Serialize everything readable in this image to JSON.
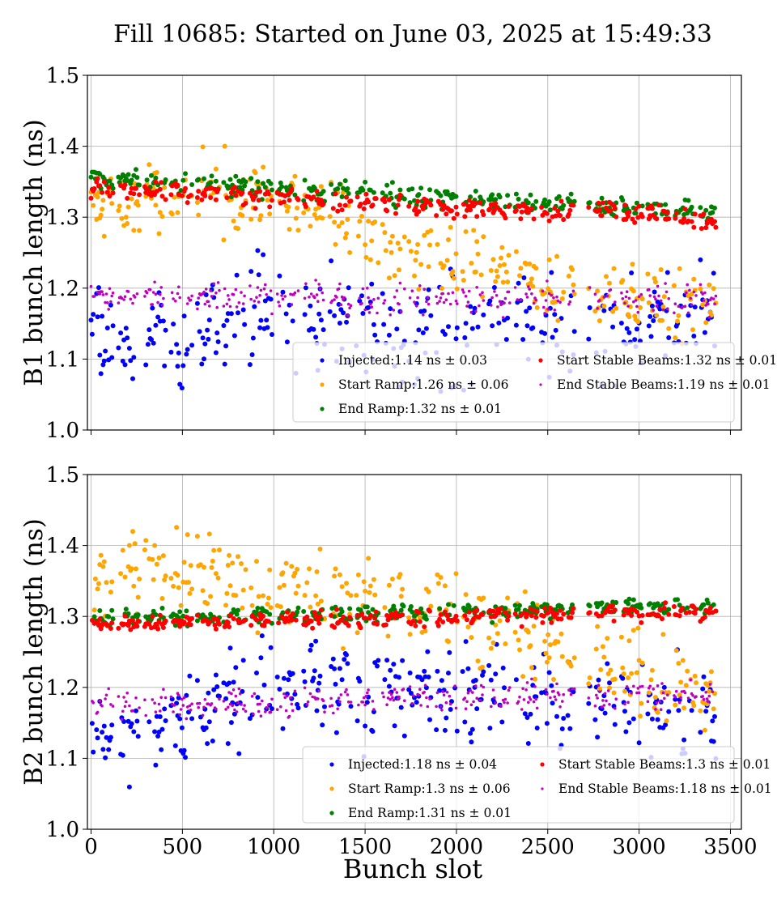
{
  "title": "Fill 10685: Started on June 03, 2025 at 15:49:33",
  "colors": {
    "Injected": "#0000ff",
    "Start Ramp": "#ffa500",
    "End Ramp": "#008000",
    "Start Stable Beams": "#ff0000",
    "End Stable Beams": "#bf00bf",
    "grid": "#b0b0b0"
  },
  "xlabel": "Bunch slot",
  "chart_data": [
    {
      "type": "scatter",
      "ylabel": "B1 bunch length (ns)",
      "xlim": [
        -20,
        3560
      ],
      "ylim": [
        1.0,
        1.5
      ],
      "xticks": [
        0,
        500,
        1000,
        1500,
        2000,
        2500,
        3000,
        3500
      ],
      "xtick_labels": [
        "",
        "",
        "",
        "",
        "",
        "",
        "",
        ""
      ],
      "yticks": [
        1.0,
        1.1,
        1.2,
        1.3,
        1.4,
        1.5
      ],
      "ytick_labels": [
        "1.0",
        "1.1",
        "1.2",
        "1.3",
        "1.4",
        "1.5"
      ],
      "grid": true,
      "legend_position": "lower-right",
      "series": [
        {
          "name": "Injected",
          "label": "Injected:1.14 ns ± 0.03",
          "trend_x": [
            0,
            500,
            900,
            1000,
            1500,
            2000,
            2500,
            3000,
            3420
          ],
          "trend_y": [
            1.12,
            1.13,
            1.16,
            1.18,
            1.14,
            1.14,
            1.14,
            1.15,
            1.16
          ],
          "spread": 0.035
        },
        {
          "name": "Start Ramp",
          "label": "Start Ramp:1.26 ns ± 0.06",
          "trend_x": [
            0,
            200,
            500,
            750,
            1000,
            1200,
            1500,
            2000,
            2500,
            3000,
            3420
          ],
          "trend_y": [
            1.32,
            1.31,
            1.33,
            1.34,
            1.32,
            1.32,
            1.27,
            1.24,
            1.21,
            1.18,
            1.17
          ],
          "spread": 0.025
        },
        {
          "name": "End Ramp",
          "label": "End Ramp:1.32 ns ± 0.01",
          "trend_x": [
            0,
            1000,
            2000,
            3000,
            3420
          ],
          "trend_y": [
            1.355,
            1.34,
            1.325,
            1.313,
            1.308
          ],
          "spread": 0.007
        },
        {
          "name": "Start Stable Beams",
          "label": "Start Stable Beams:1.32 ns ± 0.01",
          "trend_x": [
            0,
            1000,
            2000,
            3000,
            3420
          ],
          "trend_y": [
            1.342,
            1.328,
            1.313,
            1.307,
            1.298
          ],
          "spread": 0.007
        },
        {
          "name": "End Stable Beams",
          "label": "End Stable Beams:1.19 ns ± 0.01",
          "trend_x": [
            0,
            1000,
            2000,
            3000,
            3420
          ],
          "trend_y": [
            1.188,
            1.188,
            1.185,
            1.185,
            1.183
          ],
          "spread": 0.01
        }
      ]
    },
    {
      "type": "scatter",
      "ylabel": "B2 bunch length (ns)",
      "xlim": [
        -20,
        3560
      ],
      "ylim": [
        1.0,
        1.5
      ],
      "xticks": [
        0,
        500,
        1000,
        1500,
        2000,
        2500,
        3000,
        3500
      ],
      "xtick_labels": [
        "0",
        "500",
        "1000",
        "1500",
        "2000",
        "2500",
        "3000",
        "3500"
      ],
      "yticks": [
        1.0,
        1.1,
        1.2,
        1.3,
        1.4,
        1.5
      ],
      "ytick_labels": [
        "1.0",
        "1.1",
        "1.2",
        "1.3",
        "1.4",
        "1.5"
      ],
      "grid": true,
      "legend_position": "lower-right",
      "series": [
        {
          "name": "Injected",
          "label": "Injected:1.18 ns ± 0.04",
          "trend_x": [
            0,
            200,
            500,
            900,
            1200,
            1500,
            2000,
            2500,
            3000,
            3420
          ],
          "trend_y": [
            1.12,
            1.14,
            1.16,
            1.19,
            1.22,
            1.2,
            1.2,
            1.18,
            1.17,
            1.16
          ],
          "spread": 0.035
        },
        {
          "name": "Start Ramp",
          "label": "Start Ramp:1.3 ns ± 0.06",
          "trend_x": [
            0,
            300,
            550,
            1000,
            1500,
            2000,
            2500,
            3000,
            3420
          ],
          "trend_y": [
            1.35,
            1.37,
            1.37,
            1.34,
            1.32,
            1.3,
            1.27,
            1.22,
            1.2
          ],
          "spread": 0.028
        },
        {
          "name": "End Ramp",
          "label": "End Ramp:1.31 ns ± 0.01",
          "trend_x": [
            0,
            1000,
            2000,
            3000,
            3420
          ],
          "trend_y": [
            1.297,
            1.302,
            1.307,
            1.313,
            1.317
          ],
          "spread": 0.006
        },
        {
          "name": "Start Stable Beams",
          "label": "Start Stable Beams:1.3 ns ± 0.01",
          "trend_x": [
            0,
            1000,
            2000,
            3000,
            3420
          ],
          "trend_y": [
            1.29,
            1.293,
            1.3,
            1.305,
            1.308
          ],
          "spread": 0.006
        },
        {
          "name": "End Stable Beams",
          "label": "End Stable Beams:1.18 ns ± 0.01",
          "trend_x": [
            0,
            1000,
            2000,
            3000,
            3420
          ],
          "trend_y": [
            1.18,
            1.178,
            1.185,
            1.19,
            1.19
          ],
          "spread": 0.01
        }
      ]
    }
  ]
}
